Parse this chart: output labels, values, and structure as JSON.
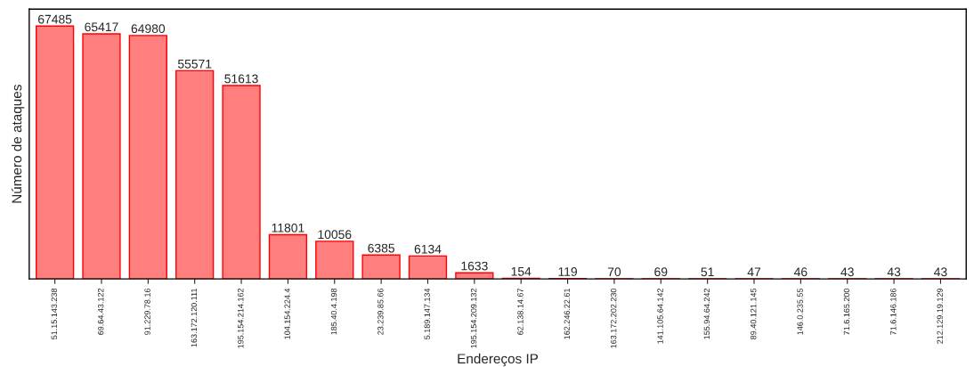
{
  "chart_data": {
    "type": "bar",
    "xlabel": "Endereços IP",
    "ylabel": "Número de ataques",
    "categories": [
      "51.15.143.238",
      "69.64.43.122",
      "91.229.78.16",
      "163.172.120.111",
      "195.154.214.162",
      "104.154.224.4",
      "185.40.4.198",
      "23.239.85.66",
      "5.189.147.134",
      "195.154.209.132",
      "62.138.14.67",
      "162.246.22.61",
      "163.172.202.230",
      "141.105.64.142",
      "155.94.64.242",
      "89.40.121.145",
      "146.0.235.55",
      "71.6.165.200",
      "71.6.146.186",
      "212.129.19.129"
    ],
    "values": [
      67485,
      65417,
      64980,
      55571,
      51613,
      11801,
      10056,
      6385,
      6134,
      1633,
      154,
      119,
      70,
      69,
      51,
      47,
      46,
      43,
      43,
      43
    ],
    "color": "#ff7f7f",
    "ylim": [
      0,
      72000
    ],
    "data_labels": true,
    "tick_labels": "x",
    "grid": false,
    "legend": false
  }
}
